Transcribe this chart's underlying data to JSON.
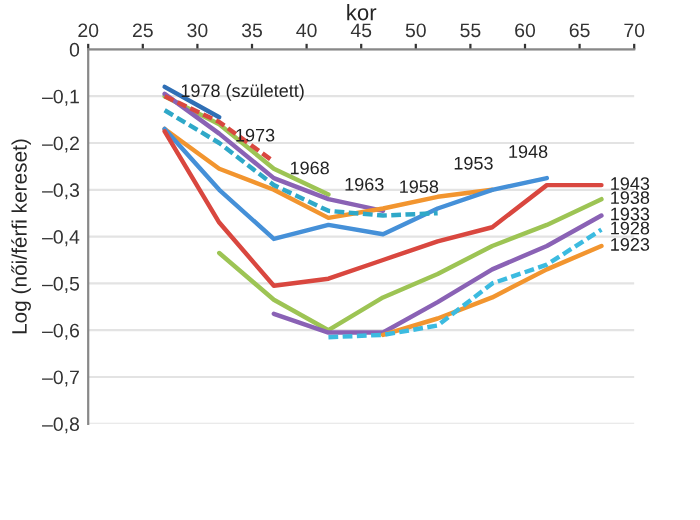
{
  "chart_data": {
    "type": "line",
    "xlabel": "kor",
    "ylabel": "Log (női/férfi kereset)",
    "xlim": [
      20,
      70
    ],
    "xticks": [
      20,
      25,
      30,
      35,
      40,
      45,
      50,
      55,
      60,
      65,
      70
    ],
    "ylim": [
      -0.8,
      0
    ],
    "yticks": [
      {
        "value": 0,
        "label": "0"
      },
      {
        "value": -0.1,
        "label": "–0,1"
      },
      {
        "value": -0.2,
        "label": "–0,2"
      },
      {
        "value": -0.3,
        "label": "–0,3"
      },
      {
        "value": -0.4,
        "label": "–0,4"
      },
      {
        "value": -0.5,
        "label": "–0,5"
      },
      {
        "value": -0.6,
        "label": "–0,6"
      },
      {
        "value": -0.7,
        "label": "–0,7"
      },
      {
        "value": -0.8,
        "label": "–0,8"
      }
    ],
    "grid": "y",
    "legend": false,
    "marker": "none",
    "series": [
      {
        "name": "1978 (született)",
        "color": "#2f6fb5",
        "x": [
          27,
          32
        ],
        "values": [
          -0.08,
          -0.145
        ]
      },
      {
        "name": "1973",
        "color": "#d9473f",
        "line_style": "dashed",
        "x": [
          27,
          32,
          37
        ],
        "values": [
          -0.1,
          -0.155,
          -0.24
        ]
      },
      {
        "name": "1968",
        "color": "#9dc454",
        "x": [
          27,
          32,
          37,
          42
        ],
        "values": [
          -0.1,
          -0.16,
          -0.255,
          -0.31
        ]
      },
      {
        "name": "1963",
        "color": "#8a62b5",
        "x": [
          27,
          32,
          37,
          42,
          47
        ],
        "values": [
          -0.095,
          -0.18,
          -0.275,
          -0.32,
          -0.345
        ]
      },
      {
        "name": "1958",
        "color": "#2fa8c8",
        "line_style": "dashed",
        "x": [
          27,
          32,
          37,
          42,
          47,
          52
        ],
        "values": [
          -0.13,
          -0.2,
          -0.29,
          -0.345,
          -0.355,
          -0.35
        ]
      },
      {
        "name": "1953",
        "color": "#f2952f",
        "x": [
          27,
          32,
          37,
          42,
          47,
          52,
          57
        ],
        "values": [
          -0.17,
          -0.255,
          -0.3,
          -0.36,
          -0.34,
          -0.315,
          -0.3
        ]
      },
      {
        "name": "1948",
        "color": "#4590d8",
        "x": [
          27,
          32,
          37,
          42,
          47,
          52,
          57,
          62
        ],
        "values": [
          -0.17,
          -0.3,
          -0.405,
          -0.375,
          -0.395,
          -0.34,
          -0.3,
          -0.275
        ]
      },
      {
        "name": "1943",
        "color": "#d9473f",
        "x": [
          27,
          32,
          37,
          42,
          47,
          52,
          57,
          62,
          67
        ],
        "values": [
          -0.175,
          -0.37,
          -0.505,
          -0.49,
          -0.45,
          -0.41,
          -0.38,
          -0.29,
          -0.29
        ]
      },
      {
        "name": "1938",
        "color": "#9dc454",
        "x": [
          32,
          37,
          42,
          47,
          52,
          57,
          62,
          67
        ],
        "values": [
          -0.435,
          -0.535,
          -0.6,
          -0.53,
          -0.48,
          -0.42,
          -0.375,
          -0.32
        ]
      },
      {
        "name": "1933",
        "color": "#8a62b5",
        "x": [
          37,
          42,
          47,
          52,
          57,
          62,
          67
        ],
        "values": [
          -0.565,
          -0.605,
          -0.605,
          -0.54,
          -0.47,
          -0.42,
          -0.355
        ]
      },
      {
        "name": "1928",
        "color": "#3cbbe0",
        "line_style": "dashed",
        "x": [
          42,
          47,
          52,
          57,
          62,
          67
        ],
        "values": [
          -0.615,
          -0.61,
          -0.59,
          -0.5,
          -0.46,
          -0.385
        ]
      },
      {
        "name": "1923",
        "color": "#f2952f",
        "x": [
          47,
          52,
          57,
          62,
          67
        ],
        "values": [
          -0.61,
          -0.575,
          -0.53,
          -0.47,
          -0.42
        ]
      }
    ]
  }
}
